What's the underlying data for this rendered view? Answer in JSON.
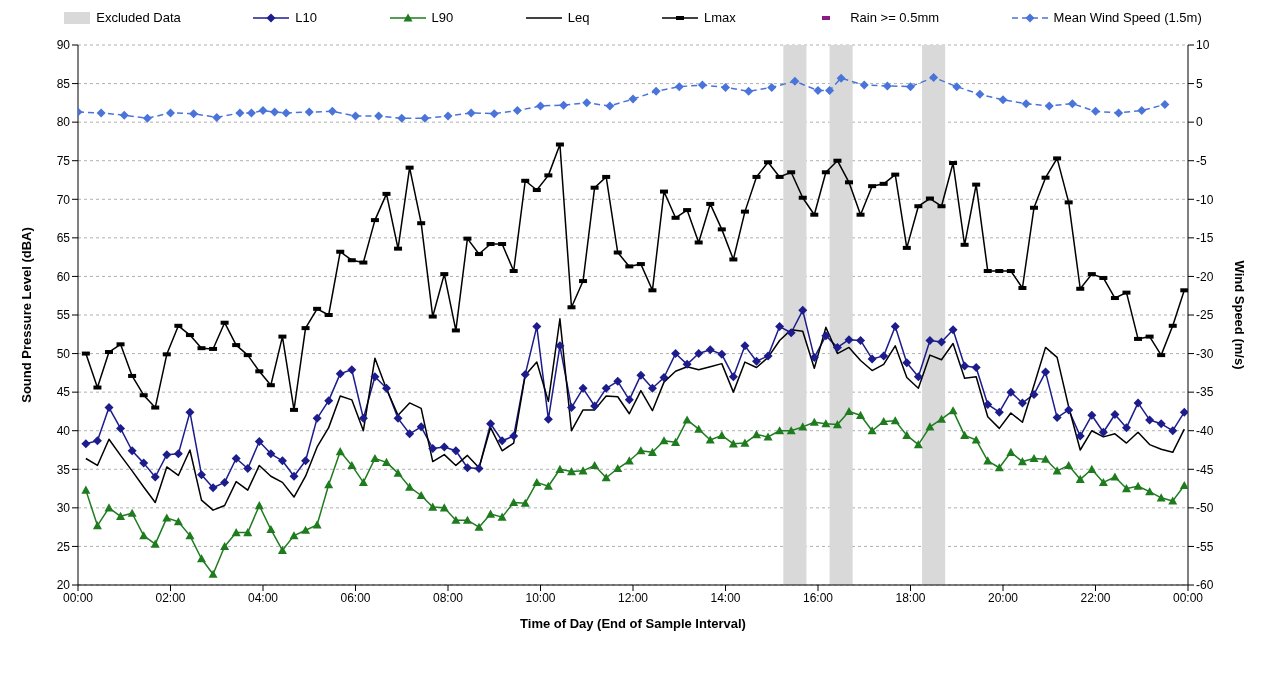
{
  "chart_data": {
    "type": "line",
    "xlabel": "Time of Day (End of Sample Interval)",
    "ylabel": "Sound Pressure Level (dBA)",
    "y2label": "Wind Speed (m/s)",
    "x": [
      0.17,
      0.42,
      0.67,
      0.92,
      1.17,
      1.42,
      1.67,
      1.92,
      2.17,
      2.42,
      2.67,
      2.92,
      3.17,
      3.42,
      3.67,
      3.92,
      4.17,
      4.42,
      4.67,
      4.92,
      5.17,
      5.42,
      5.67,
      5.92,
      6.17,
      6.42,
      6.67,
      6.92,
      7.17,
      7.42,
      7.67,
      7.92,
      8.17,
      8.42,
      8.67,
      8.92,
      9.17,
      9.42,
      9.67,
      9.92,
      10.17,
      10.42,
      10.67,
      10.92,
      11.17,
      11.42,
      11.67,
      11.92,
      12.17,
      12.42,
      12.67,
      12.92,
      13.17,
      13.42,
      13.67,
      13.92,
      14.17,
      14.42,
      14.67,
      14.92,
      15.17,
      15.42,
      15.67,
      15.92,
      16.17,
      16.42,
      16.67,
      16.92,
      17.17,
      17.42,
      17.67,
      17.92,
      18.17,
      18.42,
      18.67,
      18.92,
      19.17,
      19.42,
      19.67,
      19.92,
      20.17,
      20.42,
      20.67,
      20.92,
      21.17,
      21.42,
      21.67,
      21.92,
      22.17,
      22.42,
      22.67,
      22.92,
      23.17,
      23.42,
      23.67,
      23.92
    ],
    "series": [
      {
        "name": "L10",
        "color": "#1c1c8c",
        "marker": "diamond",
        "values": [
          38.3,
          38.7,
          43.0,
          40.3,
          37.4,
          35.8,
          34.0,
          36.9,
          37.0,
          42.4,
          34.3,
          32.6,
          33.3,
          36.4,
          35.1,
          38.6,
          37.0,
          36.1,
          34.1,
          36.1,
          41.6,
          43.9,
          47.4,
          47.9,
          41.6,
          47.0,
          45.5,
          41.6,
          39.6,
          40.5,
          37.7,
          37.9,
          37.4,
          35.2,
          35.1,
          40.9,
          38.7,
          39.3,
          47.3,
          53.5,
          41.5,
          51.0,
          43.0,
          45.5,
          43.2,
          45.5,
          46.4,
          44.0,
          47.2,
          45.5,
          46.9,
          50.0,
          48.6,
          50.0,
          50.5,
          49.9,
          47.0,
          51.0,
          49.0,
          49.7,
          53.5,
          52.7,
          55.6,
          49.5,
          52.3,
          50.8,
          51.8,
          51.7,
          49.3,
          49.7,
          53.5,
          48.8,
          47.0,
          51.7,
          51.5,
          53.1,
          48.4,
          48.2,
          43.4,
          42.4,
          45.0,
          43.6,
          44.7,
          47.6,
          41.7,
          42.7,
          39.3,
          42.0,
          39.8,
          42.1,
          40.4,
          43.6,
          41.4,
          40.9,
          40.0,
          42.4
        ]
      },
      {
        "name": "L90",
        "color": "#1e7b1e",
        "marker": "triangle",
        "values": [
          32.3,
          27.7,
          30.0,
          28.9,
          29.3,
          26.4,
          25.3,
          28.7,
          28.2,
          26.4,
          23.4,
          21.4,
          25.0,
          26.8,
          26.8,
          30.3,
          27.2,
          24.5,
          26.4,
          27.1,
          27.8,
          33.0,
          37.3,
          35.5,
          33.3,
          36.4,
          35.9,
          34.5,
          32.7,
          31.6,
          30.1,
          30.0,
          28.4,
          28.4,
          27.5,
          29.2,
          28.8,
          30.7,
          30.6,
          33.3,
          32.8,
          35.0,
          34.7,
          34.8,
          35.5,
          33.9,
          35.1,
          36.1,
          37.4,
          37.2,
          38.7,
          38.5,
          41.4,
          40.2,
          38.8,
          39.4,
          38.3,
          38.4,
          39.5,
          39.2,
          40.0,
          40.0,
          40.5,
          41.1,
          40.9,
          40.8,
          42.5,
          42.0,
          40.0,
          41.2,
          41.3,
          39.4,
          38.2,
          40.5,
          41.5,
          42.6,
          39.4,
          38.8,
          36.1,
          35.2,
          37.2,
          36.0,
          36.4,
          36.3,
          34.8,
          35.5,
          33.7,
          35.0,
          33.3,
          34.0,
          32.5,
          32.8,
          32.1,
          31.3,
          30.9,
          32.9
        ]
      },
      {
        "name": "Leq",
        "color": "#000000",
        "marker": "none",
        "values": [
          36.4,
          35.5,
          38.9,
          36.8,
          34.8,
          32.7,
          30.7,
          35.3,
          34.2,
          37.5,
          31.0,
          29.7,
          30.3,
          33.4,
          32.3,
          35.5,
          34.1,
          33.3,
          31.4,
          34.1,
          37.9,
          40.4,
          44.5,
          44.0,
          40.0,
          49.4,
          45.4,
          42.0,
          43.6,
          42.9,
          36.0,
          36.9,
          35.5,
          36.8,
          35.2,
          40.4,
          37.4,
          38.4,
          47.2,
          48.9,
          43.8,
          54.5,
          40.0,
          42.7,
          42.7,
          44.5,
          44.4,
          42.2,
          45.2,
          42.6,
          46.3,
          47.7,
          48.3,
          47.9,
          48.3,
          48.7,
          45.0,
          48.9,
          48.2,
          49.5,
          51.7,
          53.1,
          52.9,
          48.1,
          53.4,
          50.0,
          50.8,
          49.1,
          47.8,
          48.6,
          51.0,
          46.9,
          45.5,
          49.8,
          49.2,
          51.3,
          46.8,
          47.0,
          41.8,
          40.3,
          42.3,
          41.1,
          45.9,
          50.8,
          49.5,
          43.1,
          37.5,
          40.0,
          39.2,
          39.6,
          38.4,
          39.8,
          38.2,
          37.6,
          37.2,
          40.2
        ]
      },
      {
        "name": "Lmax",
        "color": "#000000",
        "marker": "square",
        "values": [
          50.0,
          45.6,
          50.2,
          51.2,
          47.1,
          44.6,
          43.0,
          49.9,
          53.6,
          52.4,
          50.7,
          50.6,
          54.0,
          51.1,
          49.8,
          47.7,
          45.9,
          52.2,
          42.7,
          53.3,
          55.8,
          55.0,
          63.2,
          62.1,
          61.8,
          67.3,
          70.7,
          63.6,
          74.1,
          66.9,
          54.8,
          60.3,
          53.0,
          64.9,
          62.9,
          64.2,
          64.2,
          60.7,
          72.4,
          71.2,
          73.1,
          77.1,
          56.0,
          59.4,
          71.5,
          72.9,
          63.1,
          61.3,
          61.6,
          58.2,
          71.0,
          67.6,
          68.6,
          64.4,
          69.4,
          66.1,
          62.2,
          68.4,
          72.9,
          74.8,
          72.9,
          73.5,
          70.2,
          68.0,
          73.5,
          75.0,
          72.2,
          68.0,
          71.7,
          72.0,
          73.2,
          63.7,
          69.1,
          70.1,
          69.1,
          74.7,
          64.1,
          71.9,
          60.7,
          60.7,
          60.7,
          58.5,
          68.9,
          72.8,
          75.3,
          69.6,
          58.4,
          60.3,
          59.8,
          57.2,
          57.9,
          51.9,
          52.2,
          49.8,
          53.6,
          58.2
        ]
      },
      {
        "name": "Rain >= 0.5mm",
        "color": "#8b1a8b",
        "marker": "square",
        "values": [
          null,
          null,
          null,
          null,
          null,
          null,
          null,
          null,
          null,
          null,
          null,
          null,
          null,
          null,
          null,
          null,
          null,
          null,
          null,
          null,
          null,
          null,
          null,
          null,
          null,
          null,
          null,
          null,
          null,
          null,
          null,
          null,
          null,
          null,
          null,
          null,
          null,
          null,
          null,
          null,
          null,
          null,
          null,
          null,
          null,
          null,
          null,
          null,
          null,
          null,
          null,
          null,
          null,
          null,
          null,
          null,
          null,
          null,
          null,
          null,
          null,
          null,
          null,
          null,
          null,
          null,
          null,
          null,
          null,
          null,
          null,
          null,
          null,
          null,
          null,
          null,
          null,
          null,
          null,
          null,
          null,
          null,
          null,
          null,
          null,
          null,
          null,
          null,
          null,
          null,
          null,
          null,
          null,
          null,
          null,
          null
        ]
      },
      {
        "name": "Mean Wind Speed (1.5m)",
        "color": "#4a74d9",
        "marker": "diamond",
        "line_style": "dashed",
        "axis": "y2",
        "x": [
          0,
          0.5,
          1,
          1.5,
          2,
          2.5,
          3,
          3.5,
          3.75,
          4,
          4.25,
          4.5,
          5,
          5.5,
          6,
          6.5,
          7,
          7.5,
          8,
          8.5,
          9,
          9.5,
          10,
          10.5,
          11,
          11.5,
          12,
          12.5,
          13,
          13.5,
          14,
          14.5,
          15,
          15.5,
          16,
          16.25,
          16.5,
          17,
          17.5,
          18,
          18.5,
          19,
          19.5,
          20,
          20.5,
          21,
          21.5,
          22,
          22.5,
          23,
          23.5
        ],
        "values": [
          1.3,
          1.2,
          0.9,
          0.5,
          1.2,
          1.1,
          0.6,
          1.2,
          1.2,
          1.5,
          1.3,
          1.2,
          1.3,
          1.4,
          0.8,
          0.8,
          0.5,
          0.5,
          0.8,
          1.2,
          1.1,
          1.5,
          2.1,
          2.2,
          2.5,
          2.1,
          3.0,
          4.0,
          4.6,
          4.8,
          4.5,
          4.0,
          4.5,
          5.3,
          4.1,
          4.1,
          5.7,
          4.8,
          4.7,
          4.6,
          5.8,
          4.6,
          3.6,
          2.9,
          2.4,
          2.1,
          2.4,
          1.4,
          1.2,
          1.5,
          2.3
        ]
      }
    ],
    "bands": [
      {
        "axis": "x",
        "from": 15.25,
        "to": 15.75,
        "label": "Excluded Data",
        "color": "#d9d9d9"
      },
      {
        "axis": "x",
        "from": 16.25,
        "to": 16.75,
        "color": "#d9d9d9"
      },
      {
        "axis": "x",
        "from": 18.25,
        "to": 18.75,
        "color": "#d9d9d9"
      }
    ],
    "xlim": [
      0,
      24
    ],
    "xticks": [
      {
        "value": 0,
        "label": "00:00"
      },
      {
        "value": 2,
        "label": "02:00"
      },
      {
        "value": 4,
        "label": "04:00"
      },
      {
        "value": 6,
        "label": "06:00"
      },
      {
        "value": 8,
        "label": "08:00"
      },
      {
        "value": 10,
        "label": "10:00"
      },
      {
        "value": 12,
        "label": "12:00"
      },
      {
        "value": 14,
        "label": "14:00"
      },
      {
        "value": 16,
        "label": "16:00"
      },
      {
        "value": 18,
        "label": "18:00"
      },
      {
        "value": 20,
        "label": "20:00"
      },
      {
        "value": 22,
        "label": "22:00"
      },
      {
        "value": 24,
        "label": "00:00"
      }
    ],
    "ylim": [
      20,
      90
    ],
    "yticks": [
      20,
      25,
      30,
      35,
      40,
      45,
      50,
      55,
      60,
      65,
      70,
      75,
      80,
      85,
      90
    ],
    "y2lim": [
      -60,
      10
    ],
    "y2ticks": [
      -60,
      -55,
      -50,
      -45,
      -40,
      -35,
      -30,
      -25,
      -20,
      -15,
      -10,
      -5,
      0,
      5,
      10
    ],
    "grid": "y",
    "legend": "top",
    "line_style": "solid"
  }
}
